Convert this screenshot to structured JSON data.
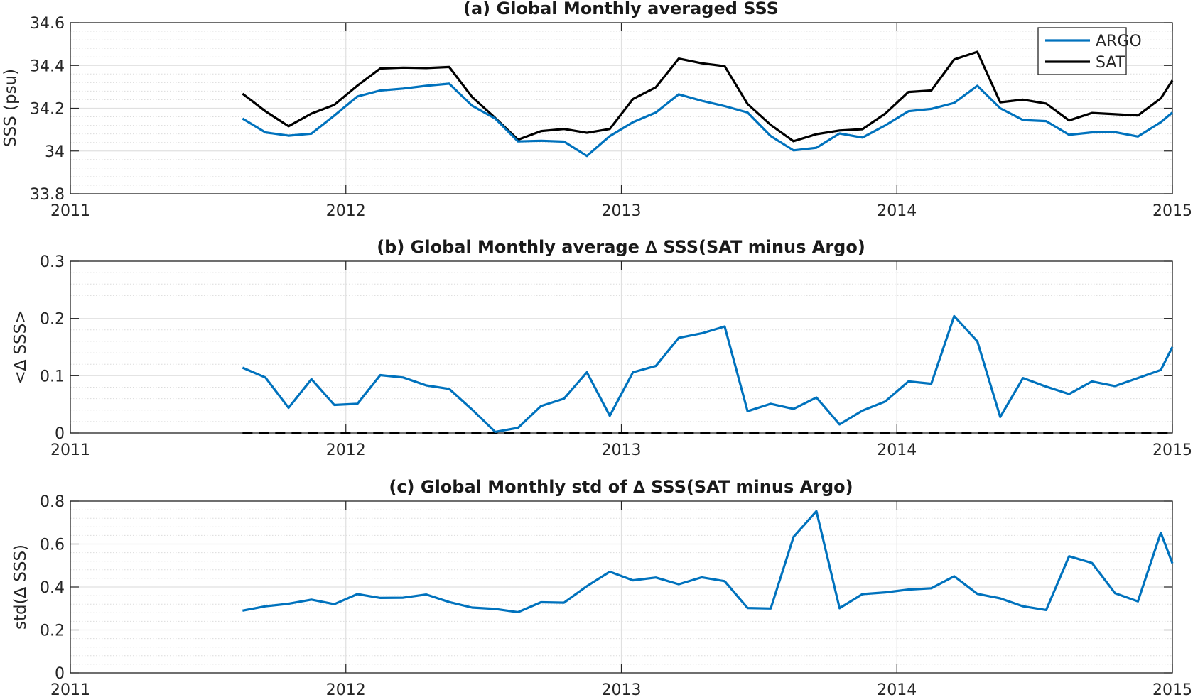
{
  "colors": {
    "argo": "#0072BD",
    "sat": "#000000",
    "zero_line": "#000000"
  },
  "chart_data": [
    {
      "type": "line",
      "title": "(a) Global Monthly averaged SSS",
      "ylabel": "SSS (psu)",
      "xlabel": "",
      "xlim": [
        2011,
        2015
      ],
      "ylim": [
        33.8,
        34.6
      ],
      "xticks": [
        2011,
        2012,
        2013,
        2014,
        2015
      ],
      "xtick_labels": [
        "2011",
        "2012",
        "2013",
        "2014",
        "2015"
      ],
      "yticks": [
        33.8,
        34.0,
        34.2,
        34.4,
        34.6
      ],
      "ytick_labels": [
        "33.8",
        "34",
        "34.2",
        "34.4",
        "34.6"
      ],
      "grid": true,
      "minor_grid": true,
      "legend_position": "top-right",
      "legend": [
        "ARGO",
        "SAT"
      ],
      "x": [
        2011.625,
        2011.708,
        2011.792,
        2011.875,
        2011.958,
        2012.042,
        2012.125,
        2012.208,
        2012.292,
        2012.375,
        2012.458,
        2012.542,
        2012.625,
        2012.708,
        2012.792,
        2012.875,
        2012.958,
        2013.042,
        2013.125,
        2013.208,
        2013.292,
        2013.375,
        2013.458,
        2013.542,
        2013.625,
        2013.708,
        2013.792,
        2013.875,
        2013.958,
        2014.042,
        2014.125,
        2014.208,
        2014.292,
        2014.375,
        2014.458,
        2014.542,
        2014.625,
        2014.708,
        2014.792,
        2014.875,
        2014.958,
        2015.0
      ],
      "series": [
        {
          "name": "ARGO",
          "values": [
            34.152,
            34.087,
            34.072,
            34.081,
            34.166,
            34.255,
            34.283,
            34.292,
            34.305,
            34.315,
            34.212,
            34.152,
            34.045,
            34.048,
            34.044,
            33.977,
            34.07,
            34.135,
            34.18,
            34.265,
            34.235,
            34.21,
            34.18,
            34.07,
            34.003,
            34.015,
            34.082,
            34.063,
            34.12,
            34.186,
            34.197,
            34.225,
            34.305,
            34.2,
            34.145,
            34.14,
            34.076,
            34.087,
            34.088,
            34.068,
            34.135,
            34.18
          ]
        },
        {
          "name": "SAT",
          "values": [
            34.268,
            34.186,
            34.116,
            34.175,
            34.216,
            34.306,
            34.386,
            34.39,
            34.388,
            34.393,
            34.253,
            34.155,
            34.053,
            34.093,
            34.103,
            34.085,
            34.103,
            34.243,
            34.298,
            34.432,
            34.41,
            34.397,
            34.22,
            34.122,
            34.046,
            34.079,
            34.096,
            34.102,
            34.175,
            34.276,
            34.283,
            34.428,
            34.464,
            34.228,
            34.24,
            34.222,
            34.143,
            34.178,
            34.172,
            34.166,
            34.246,
            34.33
          ]
        }
      ]
    },
    {
      "type": "line",
      "title": "(b) Global Monthly average ∆ SSS(SAT minus Argo)",
      "ylabel": "<∆ SSS>",
      "xlabel": "",
      "xlim": [
        2011,
        2015
      ],
      "ylim": [
        0,
        0.3
      ],
      "xticks": [
        2011,
        2012,
        2013,
        2014,
        2015
      ],
      "xtick_labels": [
        "2011",
        "2012",
        "2013",
        "2014",
        "2015"
      ],
      "yticks": [
        0,
        0.1,
        0.2,
        0.3
      ],
      "ytick_labels": [
        "0",
        "0.1",
        "0.2",
        "0.3"
      ],
      "grid": true,
      "minor_grid": true,
      "reference_line": {
        "y": 0,
        "style": "dashed",
        "x_from": 2011.625,
        "x_to": 2015.0
      },
      "x": [
        2011.625,
        2011.708,
        2011.792,
        2011.875,
        2011.958,
        2012.042,
        2012.125,
        2012.208,
        2012.292,
        2012.375,
        2012.458,
        2012.542,
        2012.625,
        2012.708,
        2012.792,
        2012.875,
        2012.958,
        2013.042,
        2013.125,
        2013.208,
        2013.292,
        2013.375,
        2013.458,
        2013.542,
        2013.625,
        2013.708,
        2013.792,
        2013.875,
        2013.958,
        2014.042,
        2014.125,
        2014.208,
        2014.292,
        2014.375,
        2014.458,
        2014.542,
        2014.625,
        2014.708,
        2014.792,
        2014.875,
        2014.958,
        2015.0
      ],
      "series": [
        {
          "name": "",
          "values": [
            0.114,
            0.097,
            0.044,
            0.094,
            0.049,
            0.051,
            0.101,
            0.097,
            0.083,
            0.077,
            0.041,
            0.002,
            0.009,
            0.047,
            0.06,
            0.106,
            0.03,
            0.106,
            0.117,
            0.166,
            0.174,
            0.186,
            0.038,
            0.051,
            0.042,
            0.062,
            0.015,
            0.039,
            0.055,
            0.09,
            0.086,
            0.204,
            0.16,
            0.028,
            0.096,
            0.081,
            0.068,
            0.09,
            0.082,
            0.096,
            0.11,
            0.15
          ]
        }
      ]
    },
    {
      "type": "line",
      "title": "(c) Global Monthly std of ∆ SSS(SAT minus Argo)",
      "ylabel": "std(∆ SSS)",
      "xlabel": "",
      "xlim": [
        2011,
        2015
      ],
      "ylim": [
        0,
        0.8
      ],
      "xticks": [
        2011,
        2012,
        2013,
        2014,
        2015
      ],
      "xtick_labels": [
        "2011",
        "2012",
        "2013",
        "2014",
        "2015"
      ],
      "yticks": [
        0,
        0.2,
        0.4,
        0.6,
        0.8
      ],
      "ytick_labels": [
        "0",
        "0.2",
        "0.4",
        "0.6",
        "0.8"
      ],
      "grid": true,
      "minor_grid": true,
      "x": [
        2011.625,
        2011.708,
        2011.792,
        2011.875,
        2011.958,
        2012.042,
        2012.125,
        2012.208,
        2012.292,
        2012.375,
        2012.458,
        2012.542,
        2012.625,
        2012.708,
        2012.792,
        2012.875,
        2012.958,
        2013.042,
        2013.125,
        2013.208,
        2013.292,
        2013.375,
        2013.458,
        2013.542,
        2013.625,
        2013.708,
        2013.792,
        2013.875,
        2013.958,
        2014.042,
        2014.125,
        2014.208,
        2014.292,
        2014.375,
        2014.458,
        2014.542,
        2014.625,
        2014.708,
        2014.792,
        2014.875,
        2014.958,
        2015.0
      ],
      "series": [
        {
          "name": "",
          "values": [
            0.29,
            0.31,
            0.322,
            0.341,
            0.32,
            0.367,
            0.349,
            0.35,
            0.365,
            0.33,
            0.304,
            0.298,
            0.283,
            0.329,
            0.327,
            0.404,
            0.471,
            0.431,
            0.444,
            0.413,
            0.445,
            0.427,
            0.302,
            0.3,
            0.633,
            0.753,
            0.301,
            0.367,
            0.375,
            0.388,
            0.394,
            0.45,
            0.368,
            0.347,
            0.31,
            0.293,
            0.543,
            0.512,
            0.371,
            0.333,
            0.653,
            0.51
          ]
        }
      ]
    }
  ]
}
